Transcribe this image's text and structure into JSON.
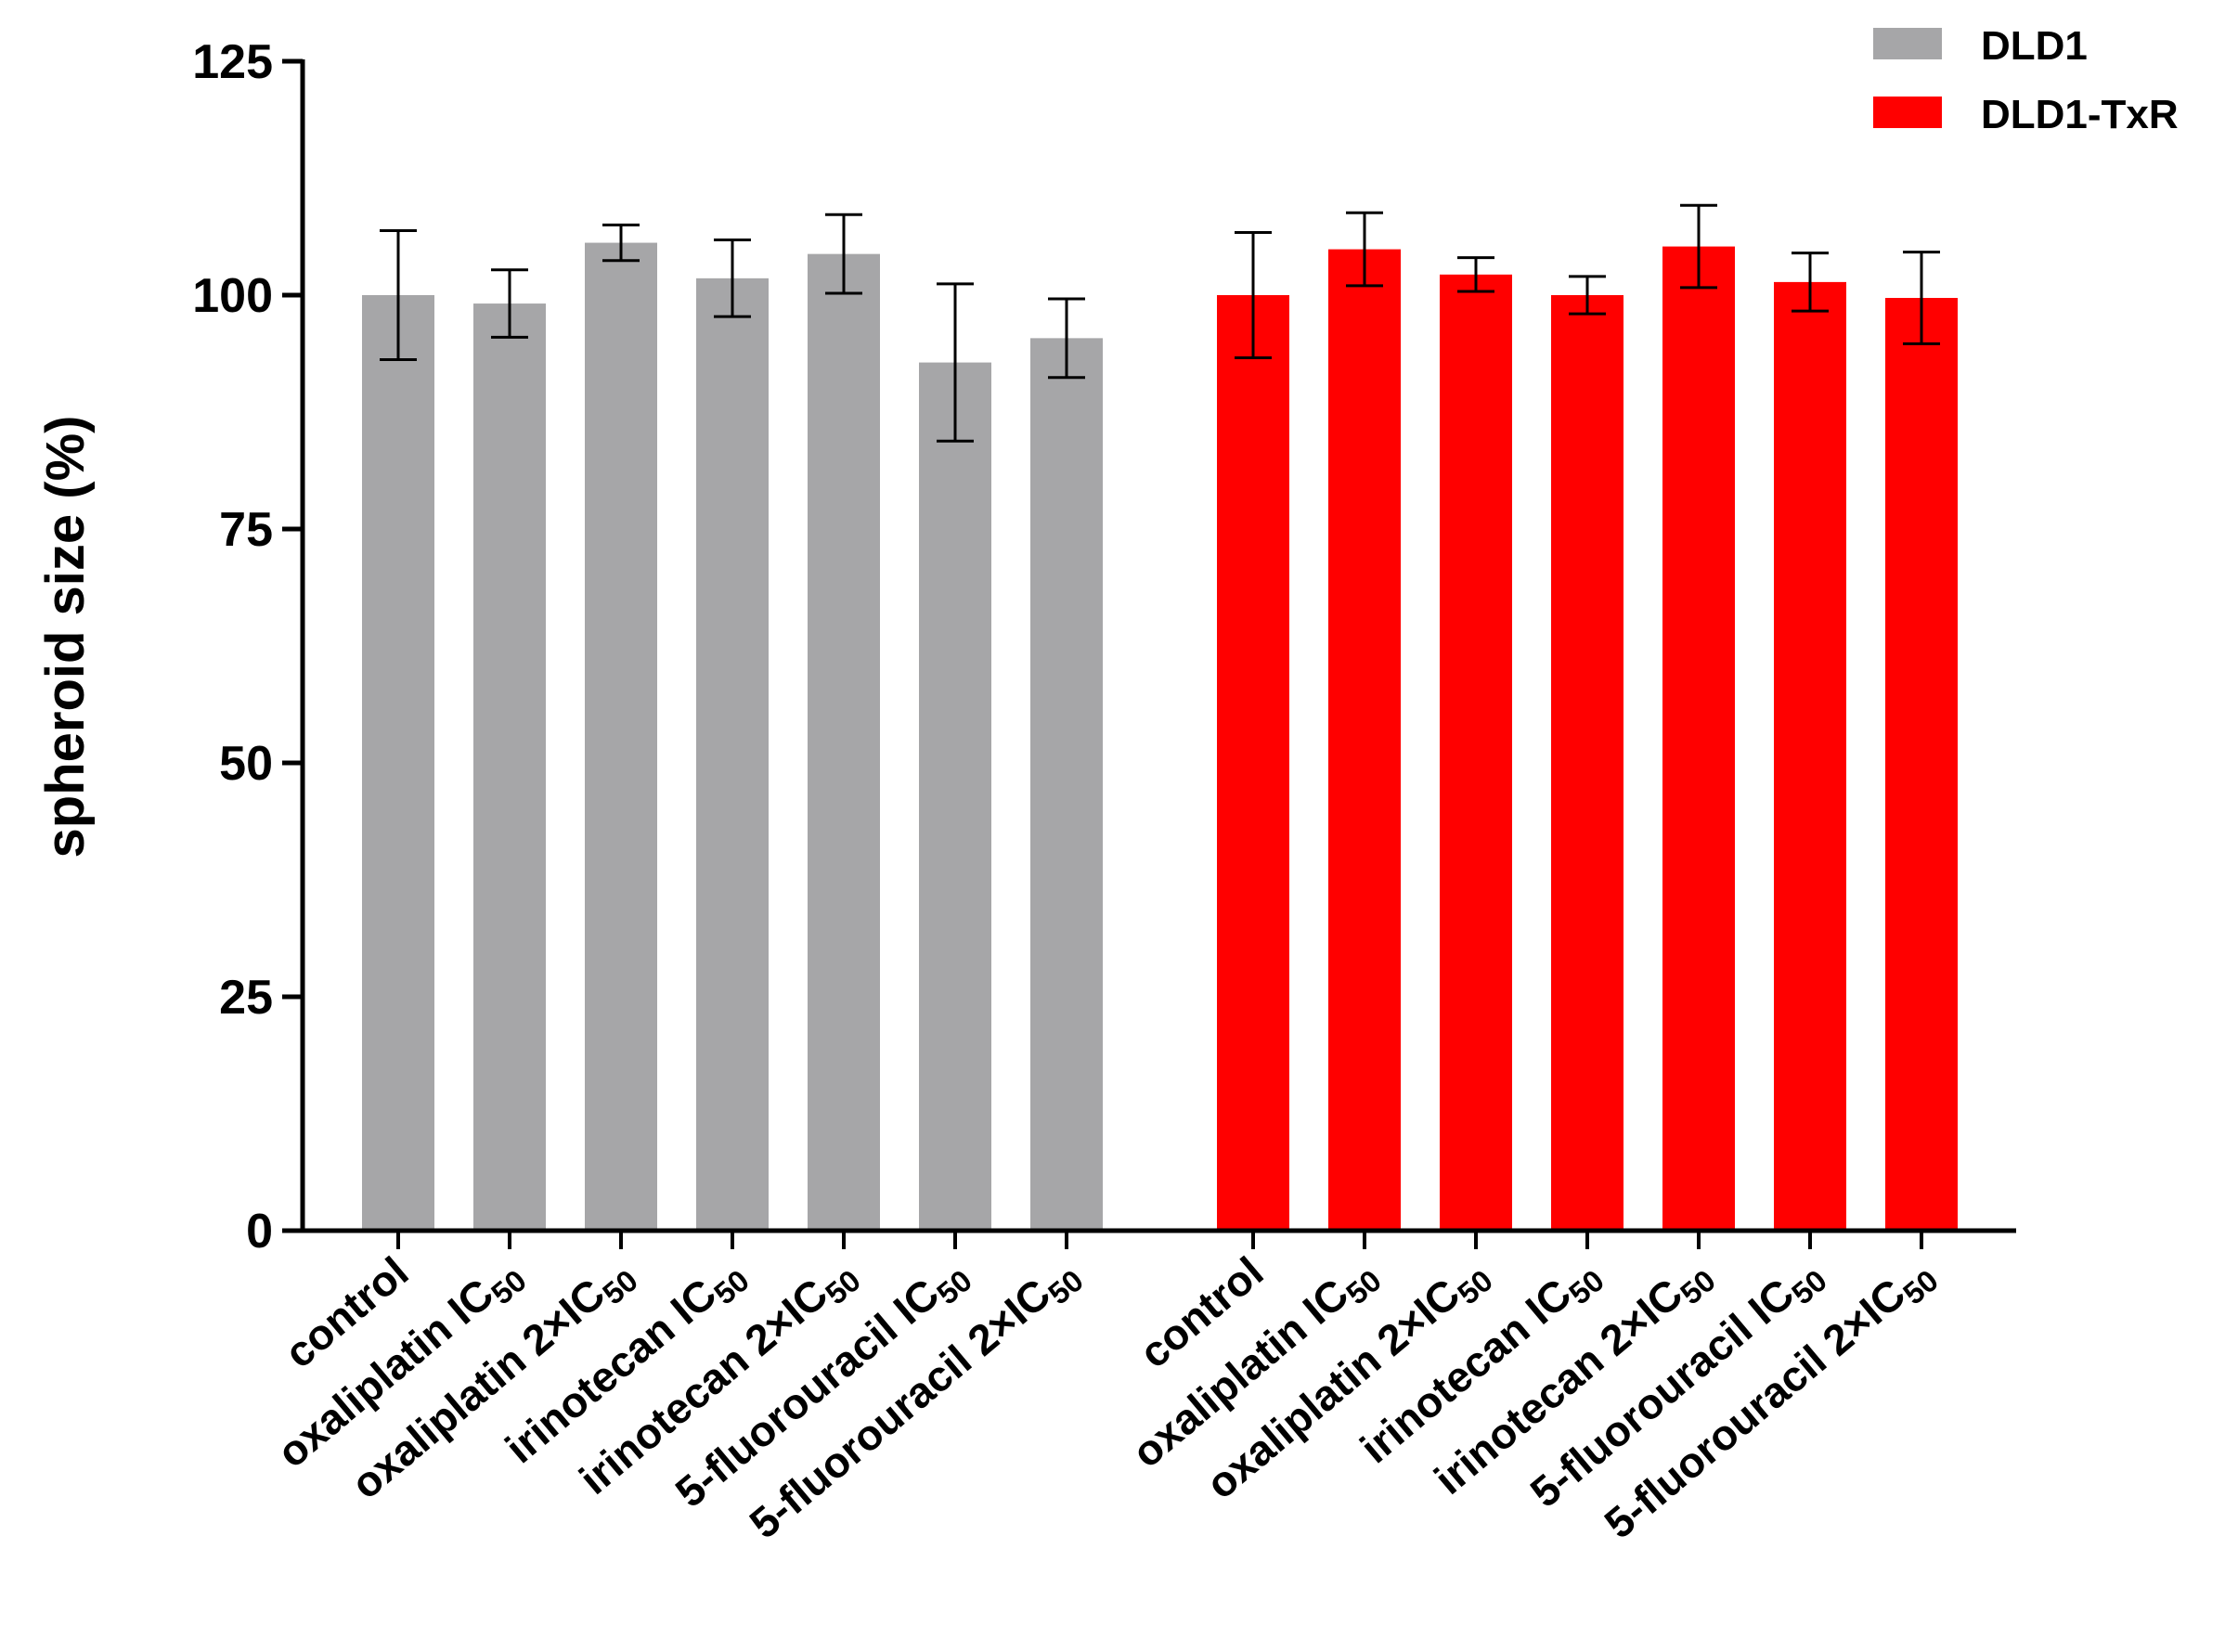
{
  "chart_data": {
    "type": "bar",
    "title": "",
    "xlabel": "",
    "ylabel": "spheroid size (%)",
    "ylim": [
      0,
      125
    ],
    "yticks": [
      "0",
      "25",
      "50",
      "75",
      "100",
      "125"
    ],
    "grid": false,
    "legend_position": "top-right",
    "groups": [
      {
        "name": "DLD1",
        "color": "#a6a6a8",
        "categories": [
          {
            "name": "control",
            "sub": ""
          },
          {
            "name": "oxaliplatin IC",
            "sub": "50"
          },
          {
            "name": "oxaliplatin 2×IC",
            "sub": "50"
          },
          {
            "name": "irinotecan IC",
            "sub": "50"
          },
          {
            "name": "irinotecan 2×IC",
            "sub": "50"
          },
          {
            "name": "5-fluorouracil IC",
            "sub": "50"
          },
          {
            "name": "5-fluorouracil 2×IC",
            "sub": "50"
          }
        ],
        "values": [
          100,
          99.1,
          105.6,
          101.8,
          104.4,
          92.8,
          95.4
        ],
        "errors": [
          6.9,
          3.6,
          1.9,
          4.1,
          4.2,
          8.4,
          4.2
        ]
      },
      {
        "name": "DLD1-TxR",
        "color": "#ff0000",
        "categories": [
          {
            "name": "control",
            "sub": ""
          },
          {
            "name": "oxaliplatin IC",
            "sub": "50"
          },
          {
            "name": "oxaliplatin 2×IC",
            "sub": "50"
          },
          {
            "name": "irinotecan IC",
            "sub": "50"
          },
          {
            "name": "irinotecan 2×IC",
            "sub": "50"
          },
          {
            "name": "5-fluorouracil IC",
            "sub": "50"
          },
          {
            "name": "5-fluorouracil 2×IC",
            "sub": "50"
          }
        ],
        "values": [
          100,
          104.9,
          102.2,
          100,
          105.2,
          101.4,
          99.7
        ],
        "errors": [
          6.7,
          3.9,
          1.8,
          2.0,
          4.4,
          3.1,
          4.9
        ]
      }
    ]
  }
}
